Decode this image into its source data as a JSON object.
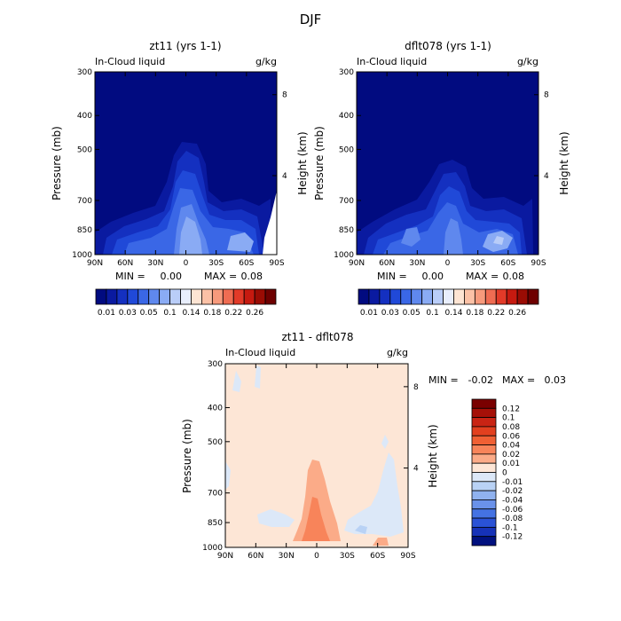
{
  "page_title": "DJF",
  "colors": {
    "frame": "#000000",
    "seq_fill": "#010b80",
    "diff_fill": "#fde6d6"
  },
  "chart_data": [
    {
      "type": "heatmap",
      "title": "zt11 (yrs 1-1)",
      "field": "In-Cloud liquid",
      "units": "g/kg",
      "ylabel": "Pressure (mb)",
      "ylabel_right": "Height (km)",
      "x_ticks": [
        "90N",
        "60N",
        "30N",
        "0",
        "30S",
        "60S",
        "90S"
      ],
      "y_ticks": [
        "300",
        "400",
        "500",
        "700",
        "850",
        "1000"
      ],
      "y_right_ticks": [
        "8",
        "4"
      ],
      "stats": {
        "min_label": "MIN =",
        "min": "0.00",
        "max_label": "MAX =",
        "max": "0.08"
      }
    },
    {
      "type": "heatmap",
      "title": "dflt078 (yrs 1-1)",
      "field": "In-Cloud liquid",
      "units": "g/kg",
      "ylabel": "Pressure (mb)",
      "ylabel_right": "Height (km)",
      "x_ticks": [
        "90N",
        "60N",
        "30N",
        "0",
        "30S",
        "60S",
        "90S"
      ],
      "y_ticks": [
        "300",
        "400",
        "500",
        "700",
        "850",
        "1000"
      ],
      "y_right_ticks": [
        "8",
        "4"
      ],
      "stats": {
        "min_label": "MIN =",
        "min": "0.00",
        "max_label": "MAX =",
        "max": "0.08"
      }
    },
    {
      "type": "heatmap",
      "title": "zt11 - dflt078",
      "field": "In-Cloud liquid",
      "units": "g/kg",
      "ylabel": "Pressure (mb)",
      "ylabel_right": "Height (km)",
      "x_ticks": [
        "90N",
        "60N",
        "30N",
        "0",
        "30S",
        "60S",
        "90S"
      ],
      "y_ticks": [
        "300",
        "400",
        "500",
        "700",
        "850",
        "1000"
      ],
      "y_right_ticks": [
        "8",
        "4"
      ],
      "stats": {
        "min_label": "MIN =",
        "min": "-0.02",
        "max_label": "MAX =",
        "max": "0.03"
      }
    }
  ],
  "colorbar_seq": {
    "labels": [
      "0.01",
      "0.03",
      "0.05",
      "0.1",
      "0.14",
      "0.18",
      "0.22",
      "0.26"
    ],
    "colors": [
      "#010b80",
      "#0a1aa0",
      "#1430c0",
      "#2049d8",
      "#3a67e6",
      "#5f88ee",
      "#8aabf4",
      "#b9cdf8",
      "#e8eefc",
      "#fde4d3",
      "#fbc1a6",
      "#f79a7c",
      "#ef6c52",
      "#e23a28",
      "#c61a10",
      "#9a0c04",
      "#6e0000"
    ]
  },
  "colorbar_diff": {
    "labels": [
      "0.12",
      "0.1",
      "0.08",
      "0.06",
      "0.04",
      "0.02",
      "0.01",
      "0",
      "-0.01",
      "-0.02",
      "-0.04",
      "-0.06",
      "-0.08",
      "-0.1",
      "-0.12"
    ],
    "colors": [
      "#7a0000",
      "#a51008",
      "#c92414",
      "#e2401f",
      "#f06034",
      "#f8845a",
      "#fbab88",
      "#fde6d6",
      "#dce8f8",
      "#b9d2f5",
      "#90b2ef",
      "#6a92ea",
      "#4472e3",
      "#2a52d6",
      "#1632b8",
      "#01117f"
    ]
  }
}
